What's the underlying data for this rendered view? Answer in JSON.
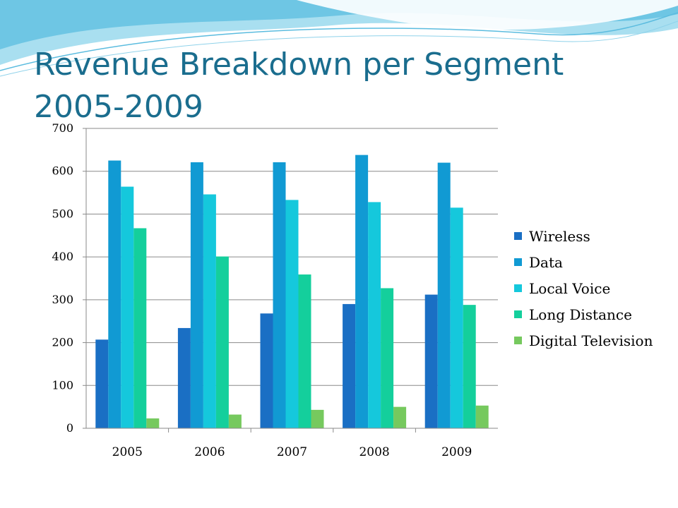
{
  "slide": {
    "title": "Revenue Breakdown per Segment 2005-2009"
  },
  "chart_data": {
    "type": "bar",
    "title": "",
    "xlabel": "",
    "ylabel": "",
    "categories": [
      "2005",
      "2006",
      "2007",
      "2008",
      "2009"
    ],
    "ylim": [
      0,
      700
    ],
    "yticks": [
      0,
      100,
      200,
      300,
      400,
      500,
      600,
      700
    ],
    "grid": true,
    "legend": "right",
    "series": [
      {
        "name": "Wireless",
        "color": "#1a6fc4",
        "values": [
          207,
          234,
          268,
          290,
          312
        ]
      },
      {
        "name": "Data",
        "color": "#119ad3",
        "values": [
          625,
          621,
          621,
          638,
          620
        ]
      },
      {
        "name": "Local Voice",
        "color": "#15c8dc",
        "values": [
          564,
          546,
          533,
          528,
          515
        ]
      },
      {
        "name": "Long Distance",
        "color": "#14cf9c",
        "values": [
          467,
          401,
          359,
          327,
          288
        ]
      },
      {
        "name": "Digital Television",
        "color": "#76c95e",
        "values": [
          23,
          32,
          43,
          50,
          53
        ]
      }
    ]
  }
}
